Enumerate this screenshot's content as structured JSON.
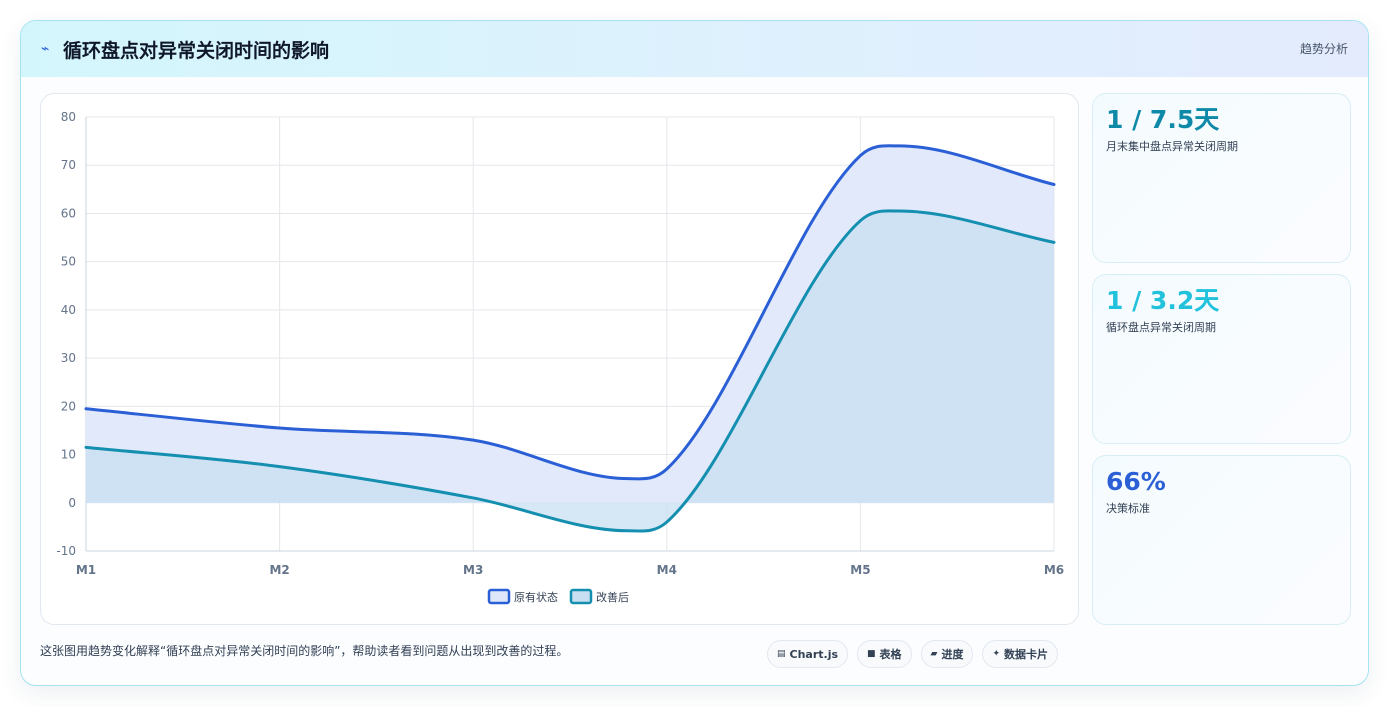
{
  "header": {
    "title": "循环盘点对异常关闭时间的影响",
    "tag": "趋势分析"
  },
  "stats": [
    {
      "value": "1 / 7.5天",
      "label": "月末集中盘点异常关闭周期",
      "color": "#0e8aa8"
    },
    {
      "value": "1 / 3.2天",
      "label": "循环盘点异常关闭周期",
      "color": "#22c1dc"
    },
    {
      "value": "66%",
      "label": "决策标准",
      "color": "#2a5fd6"
    }
  ],
  "footer": {
    "text": "这张图用趋势变化解释“循环盘点对异常关闭时间的影响”，帮助读者看到问题从出现到改善的过程。"
  },
  "chips": [
    {
      "icon": "chart-icon",
      "glyph": "▤",
      "label": "Chart.js"
    },
    {
      "icon": "table-icon",
      "glyph": "■",
      "label": "表格"
    },
    {
      "icon": "progress-icon",
      "glyph": "▰",
      "label": "进度"
    },
    {
      "icon": "sparkle-icon",
      "glyph": "✦",
      "label": "数据卡片"
    }
  ],
  "chart_data": {
    "type": "area",
    "categories": [
      "M1",
      "M2",
      "M3",
      "M4",
      "M5",
      "M6"
    ],
    "x": [
      1,
      2,
      3,
      4,
      5,
      6
    ],
    "series": [
      {
        "name": "原有状态",
        "x": [
          1,
          2,
          3,
          3.8,
          4,
          5,
          5.2,
          6
        ],
        "values": [
          19.5,
          15.5,
          13,
          5,
          7,
          72,
          74,
          66
        ],
        "color": "#2a5fd6",
        "fill": "#dfe8fb"
      },
      {
        "name": "改善后",
        "x": [
          1,
          2,
          3,
          3.8,
          4,
          5,
          5.2,
          6
        ],
        "values": [
          11.5,
          7.5,
          1,
          -5.8,
          -4,
          58.5,
          60.5,
          54
        ],
        "color": "#148fb0",
        "fill": "#c8dff1"
      }
    ],
    "ylim": [
      -10,
      80
    ],
    "yticks": [
      -10,
      0,
      10,
      20,
      30,
      40,
      50,
      60,
      70,
      80
    ],
    "grid": true,
    "legend_position": "bottom"
  }
}
